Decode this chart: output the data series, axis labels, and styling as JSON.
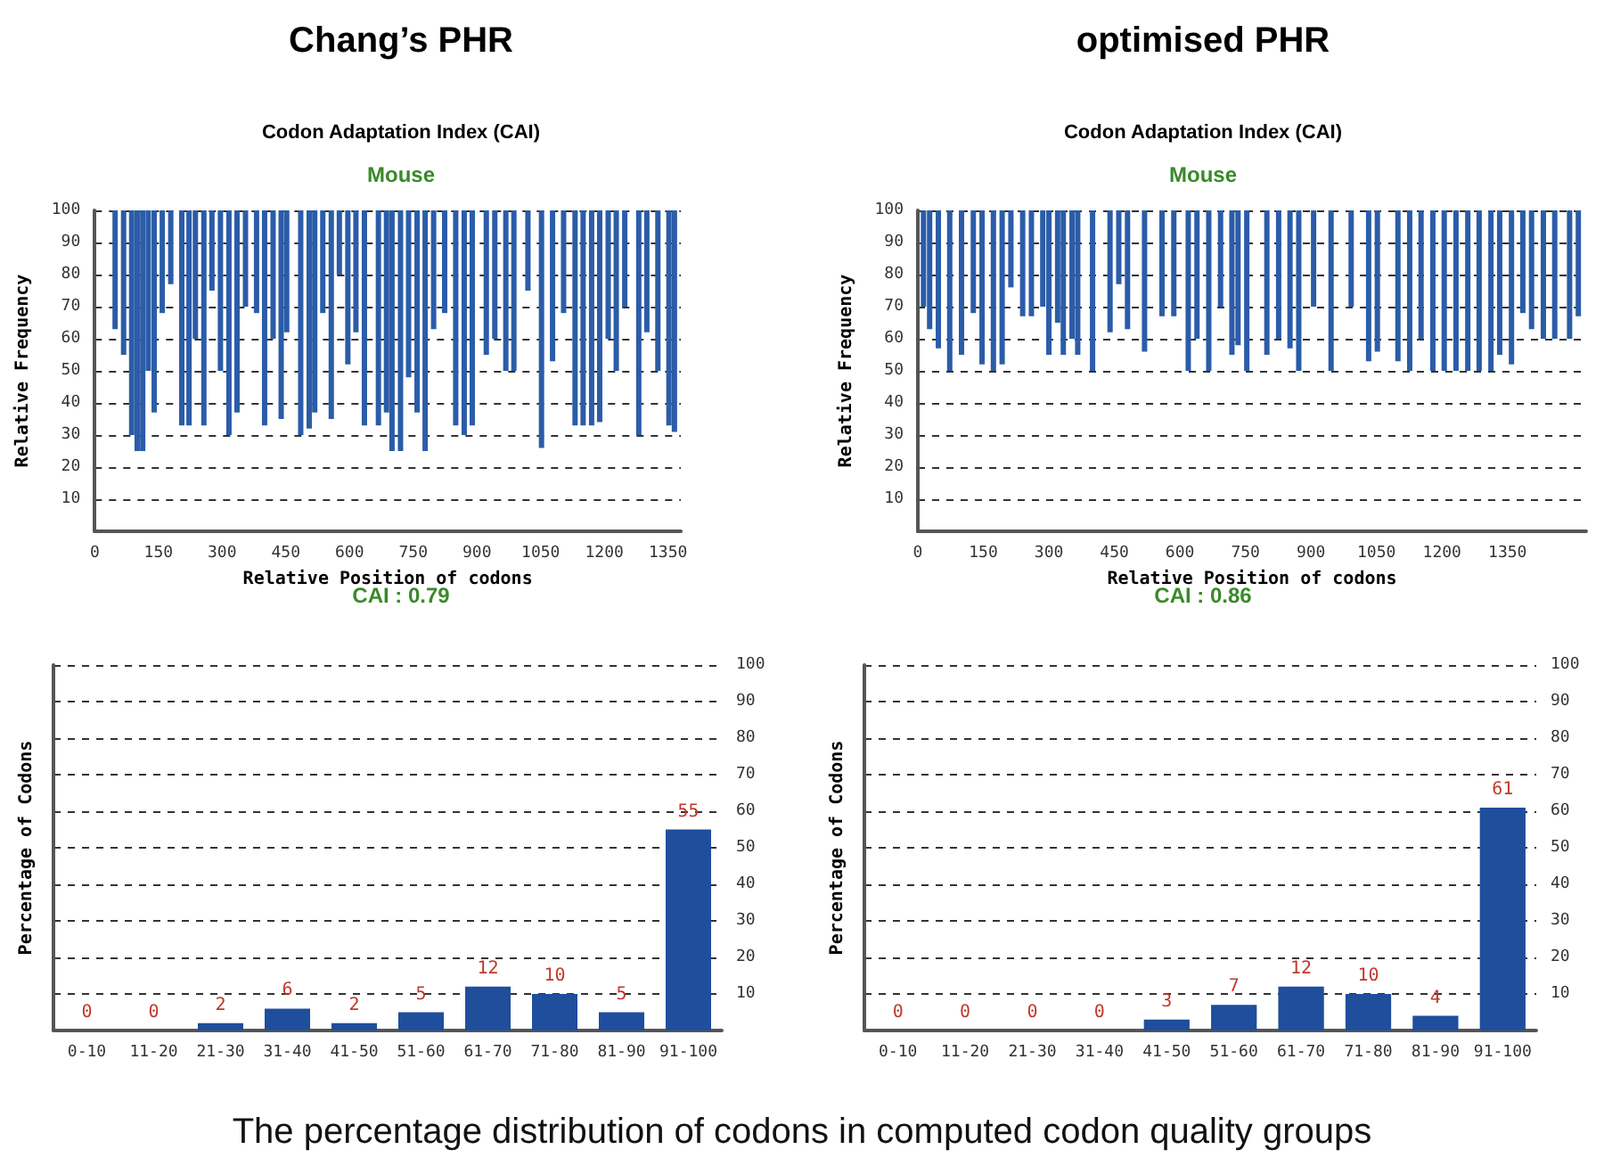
{
  "chart_data": [
    {
      "type": "bar",
      "title": "Chang’s PHR",
      "subtitle": "Codon Adaptation Index (CAI)",
      "annotations": [
        "Mouse",
        "CAI : 0.79"
      ],
      "xlabel": "Relative Position of codons",
      "ylabel": "Relative Frequency",
      "color": "#2b5ca8",
      "grid": "y",
      "tick_labels": "xy",
      "xlim": [
        0,
        1380
      ],
      "xticks": [
        0,
        150,
        300,
        450,
        600,
        750,
        900,
        1050,
        1200,
        1350
      ],
      "ylim": [
        0,
        100
      ],
      "yticks": [
        10,
        20,
        30,
        40,
        50,
        60,
        70,
        80,
        90,
        100
      ],
      "x": [
        48,
        68,
        87,
        100,
        113,
        126,
        140,
        159,
        179,
        205,
        222,
        237,
        257,
        276,
        296,
        316,
        335,
        355,
        381,
        400,
        420,
        439,
        452,
        485,
        505,
        518,
        537,
        557,
        576,
        596,
        615,
        635,
        668,
        687,
        700,
        720,
        739,
        759,
        778,
        798,
        824,
        850,
        870,
        889,
        922,
        942,
        968,
        987,
        1020,
        1052,
        1078,
        1104,
        1131,
        1150,
        1170,
        1189,
        1209,
        1228,
        1248,
        1281,
        1300,
        1326,
        1352,
        1365
      ],
      "base": [
        63,
        55,
        30,
        25,
        25,
        50,
        37,
        68,
        77,
        33,
        33,
        60,
        33,
        75,
        50,
        30,
        37,
        70,
        68,
        33,
        60,
        35,
        62,
        30,
        32,
        37,
        68,
        35,
        80,
        52,
        62,
        33,
        33,
        37,
        25,
        25,
        48,
        37,
        25,
        63,
        68,
        33,
        30,
        33,
        55,
        60,
        50,
        50,
        75,
        26,
        53,
        68,
        33,
        33,
        33,
        34,
        60,
        50,
        70,
        30,
        62,
        50,
        33,
        31
      ],
      "values": [
        37,
        45,
        70,
        75,
        75,
        50,
        63,
        32,
        23,
        67,
        67,
        40,
        67,
        25,
        50,
        70,
        63,
        30,
        32,
        67,
        40,
        65,
        38,
        70,
        68,
        63,
        32,
        65,
        20,
        48,
        38,
        67,
        67,
        63,
        75,
        75,
        52,
        63,
        75,
        37,
        32,
        67,
        70,
        67,
        45,
        40,
        50,
        50,
        25,
        74,
        47,
        32,
        67,
        67,
        67,
        66,
        40,
        50,
        30,
        70,
        38,
        50,
        67,
        69
      ]
    },
    {
      "type": "bar",
      "title": "optimised PHR",
      "subtitle": "Codon Adaptation Index (CAI)",
      "annotations": [
        "Mouse",
        "CAI : 0.86"
      ],
      "xlabel": "Relative Position of codons",
      "ylabel": "Relative Frequency",
      "color": "#2b5ca8",
      "grid": "y",
      "xlim": [
        0,
        1530
      ],
      "xticks": [
        0,
        150,
        300,
        450,
        600,
        750,
        900,
        1050,
        1200,
        1350
      ],
      "ylim": [
        0,
        100
      ],
      "yticks": [
        10,
        20,
        30,
        40,
        50,
        60,
        70,
        80,
        90,
        100
      ],
      "x": [
        13,
        27,
        47,
        73,
        100,
        127,
        147,
        173,
        193,
        213,
        240,
        260,
        286,
        300,
        320,
        333,
        353,
        366,
        400,
        440,
        460,
        480,
        519,
        559,
        586,
        619,
        639,
        666,
        693,
        719,
        733,
        753,
        799,
        826,
        852,
        872,
        906,
        946,
        992,
        1032,
        1052,
        1099,
        1126,
        1152,
        1179,
        1205,
        1232,
        1259,
        1285,
        1312,
        1332,
        1359,
        1385,
        1405,
        1432,
        1458,
        1492,
        1512
      ],
      "base": [
        70,
        63,
        57,
        50,
        55,
        68,
        52,
        50,
        52,
        76,
        67,
        67,
        70,
        55,
        65,
        55,
        60,
        55,
        50,
        62,
        77,
        63,
        56,
        67,
        67,
        50,
        60,
        50,
        70,
        55,
        58,
        50,
        55,
        60,
        57,
        50,
        70,
        50,
        70,
        53,
        56,
        53,
        50,
        60,
        50,
        50,
        50,
        50,
        50,
        50,
        55,
        52,
        68,
        63,
        60,
        60,
        60,
        67
      ],
      "values": [
        30,
        37,
        43,
        50,
        45,
        32,
        48,
        50,
        48,
        24,
        33,
        33,
        30,
        45,
        35,
        45,
        40,
        45,
        50,
        38,
        23,
        37,
        44,
        33,
        33,
        50,
        40,
        50,
        30,
        45,
        42,
        50,
        45,
        40,
        43,
        50,
        30,
        50,
        30,
        47,
        44,
        47,
        50,
        40,
        50,
        50,
        50,
        50,
        50,
        50,
        45,
        48,
        32,
        37,
        40,
        40,
        40,
        33
      ]
    },
    {
      "type": "bar",
      "ylabel": "Percentage of Codons",
      "color": "#1f4e9c",
      "grid": "y",
      "data_labels": true,
      "ylim": [
        0,
        100
      ],
      "yticks": [
        10,
        20,
        30,
        40,
        50,
        60,
        70,
        80,
        90,
        100
      ],
      "categories": [
        "0-10",
        "11-20",
        "21-30",
        "31-40",
        "41-50",
        "51-60",
        "61-70",
        "71-80",
        "81-90",
        "91-100"
      ],
      "values": [
        0,
        0,
        2,
        6,
        2,
        5,
        12,
        10,
        5,
        55
      ]
    },
    {
      "type": "bar",
      "ylabel": "Percentage of Codons",
      "color": "#1f4e9c",
      "grid": "y",
      "data_labels": true,
      "ylim": [
        0,
        100
      ],
      "yticks": [
        10,
        20,
        30,
        40,
        50,
        60,
        70,
        80,
        90,
        100
      ],
      "categories": [
        "0-10",
        "11-20",
        "21-30",
        "31-40",
        "41-50",
        "51-60",
        "61-70",
        "71-80",
        "81-90",
        "91-100"
      ],
      "values": [
        0,
        0,
        0,
        0,
        3,
        7,
        12,
        10,
        4,
        61
      ],
      "annotations": [
        "The percentage distribution of codons in computed codon quality groups"
      ]
    }
  ]
}
